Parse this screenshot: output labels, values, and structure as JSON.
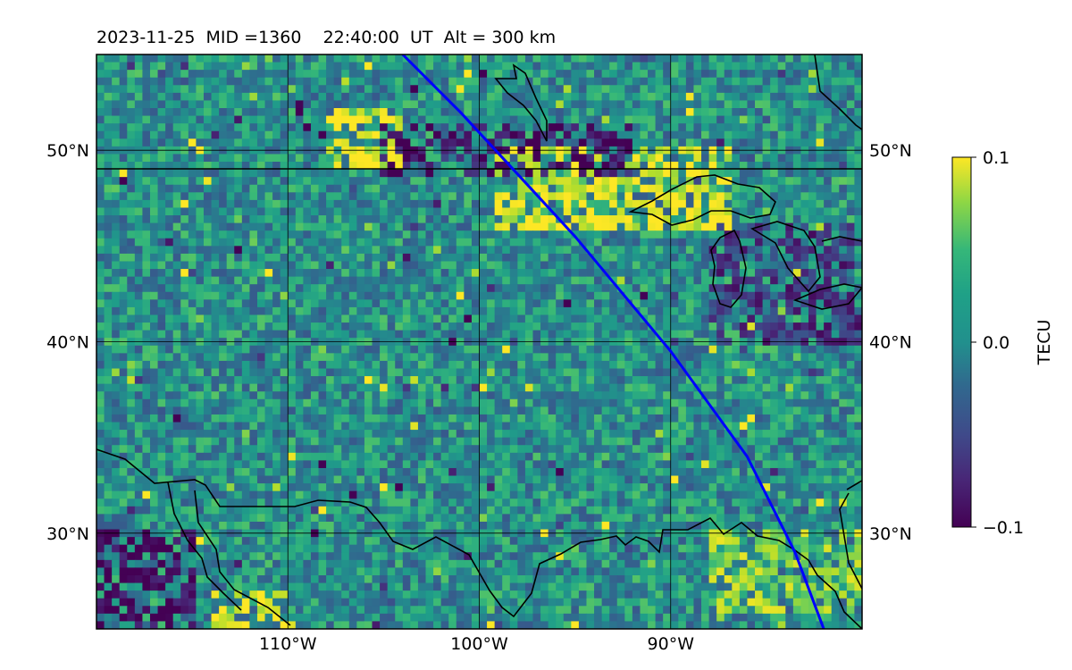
{
  "chart_data": {
    "type": "heatmap",
    "title": "2023-11-25  MID =1360    22:40:00  UT  Alt = 300 km",
    "map_extent": {
      "lon": [
        -120,
        -80
      ],
      "lat": [
        25,
        55
      ]
    },
    "x_ticks": [
      {
        "value": -110,
        "label": "110°W"
      },
      {
        "value": -100,
        "label": "100°W"
      },
      {
        "value": -90,
        "label": "90°W"
      }
    ],
    "y_ticks": [
      {
        "value": 30,
        "label": "30°N"
      },
      {
        "value": 40,
        "label": "40°N"
      },
      {
        "value": 50,
        "label": "50°N"
      }
    ],
    "grid": true,
    "colorbar": {
      "label": "TECU",
      "colormap": "viridis",
      "range": [
        -0.1,
        0.1
      ],
      "ticks": [
        {
          "value": 0.1,
          "label": "0.1"
        },
        {
          "value": 0.0,
          "label": "0.0"
        },
        {
          "value": -0.1,
          "label": "−0.1"
        }
      ]
    },
    "overlay_track": {
      "color": "#0000ff",
      "points": [
        [
          -104,
          55
        ],
        [
          -101,
          52
        ],
        [
          -98.5,
          49.3
        ],
        [
          -95,
          45.5
        ],
        [
          -90,
          39.5
        ],
        [
          -86,
          34
        ],
        [
          -83.5,
          29
        ],
        [
          -82,
          25
        ]
      ]
    },
    "features": [
      {
        "name": "warm-patch-north-border",
        "lon": [
          -108,
          -104
        ],
        "lat": [
          49,
          52
        ],
        "level": 0.09
      },
      {
        "name": "warm-band-great-lakes",
        "lon": [
          -99,
          -87
        ],
        "lat": [
          46,
          50
        ],
        "level": 0.09
      },
      {
        "name": "cold-band-north-of-border",
        "lon": [
          -105,
          -92
        ],
        "lat": [
          48.5,
          51.5
        ],
        "level": -0.09
      },
      {
        "name": "cold-patch-great-lakes",
        "lon": [
          -88,
          -80
        ],
        "lat": [
          40,
          46
        ],
        "level": -0.07
      },
      {
        "name": "cold-patch-southwest-corner",
        "lon": [
          -120,
          -115
        ],
        "lat": [
          25,
          30
        ],
        "level": -0.1
      },
      {
        "name": "warm-spots-baja",
        "lon": [
          -114,
          -110
        ],
        "lat": [
          25,
          27
        ],
        "level": 0.09
      },
      {
        "name": "warm-spots-gulf-coast",
        "lon": [
          -88,
          -80
        ],
        "lat": [
          26,
          30
        ],
        "level": 0.07
      }
    ]
  }
}
